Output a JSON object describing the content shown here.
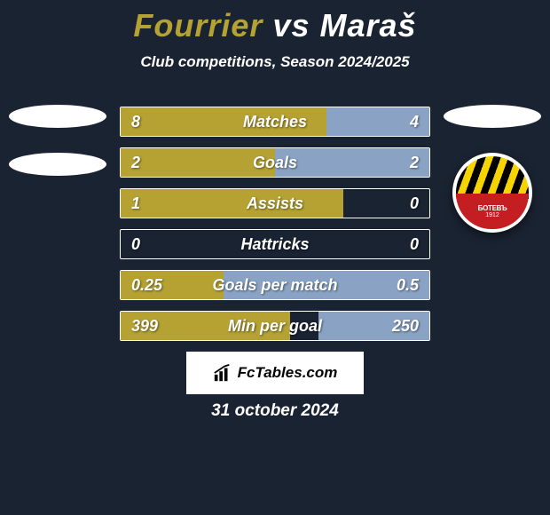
{
  "title": {
    "player_a": "Fourrier",
    "vs": "vs",
    "player_b": "Maraš",
    "player_a_color": "#b5a233",
    "player_b_color": "#ffffff"
  },
  "subtitle": "Club competitions, Season 2024/2025",
  "colors": {
    "background": "#1a2332",
    "border": "#ffffff",
    "fill_left": "#b5a233",
    "fill_right": "#8aa3c4",
    "text": "#ffffff"
  },
  "right_badge": {
    "text": "БОТЕВЪ",
    "year": "1912"
  },
  "stats": [
    {
      "label": "Matches",
      "left_value": "8",
      "right_value": "4",
      "left_pct": 66.7,
      "right_pct": 33.3
    },
    {
      "label": "Goals",
      "left_value": "2",
      "right_value": "2",
      "left_pct": 50.0,
      "right_pct": 50.0
    },
    {
      "label": "Assists",
      "left_value": "1",
      "right_value": "0",
      "left_pct": 72.0,
      "right_pct": 0.0
    },
    {
      "label": "Hattricks",
      "left_value": "0",
      "right_value": "0",
      "left_pct": 0.0,
      "right_pct": 0.0
    },
    {
      "label": "Goals per match",
      "left_value": "0.25",
      "right_value": "0.5",
      "left_pct": 33.3,
      "right_pct": 66.7
    },
    {
      "label": "Min per goal",
      "left_value": "399",
      "right_value": "250",
      "left_pct": 55.0,
      "right_pct": 36.0
    }
  ],
  "brand": "FcTables.com",
  "date": "31 october 2024"
}
